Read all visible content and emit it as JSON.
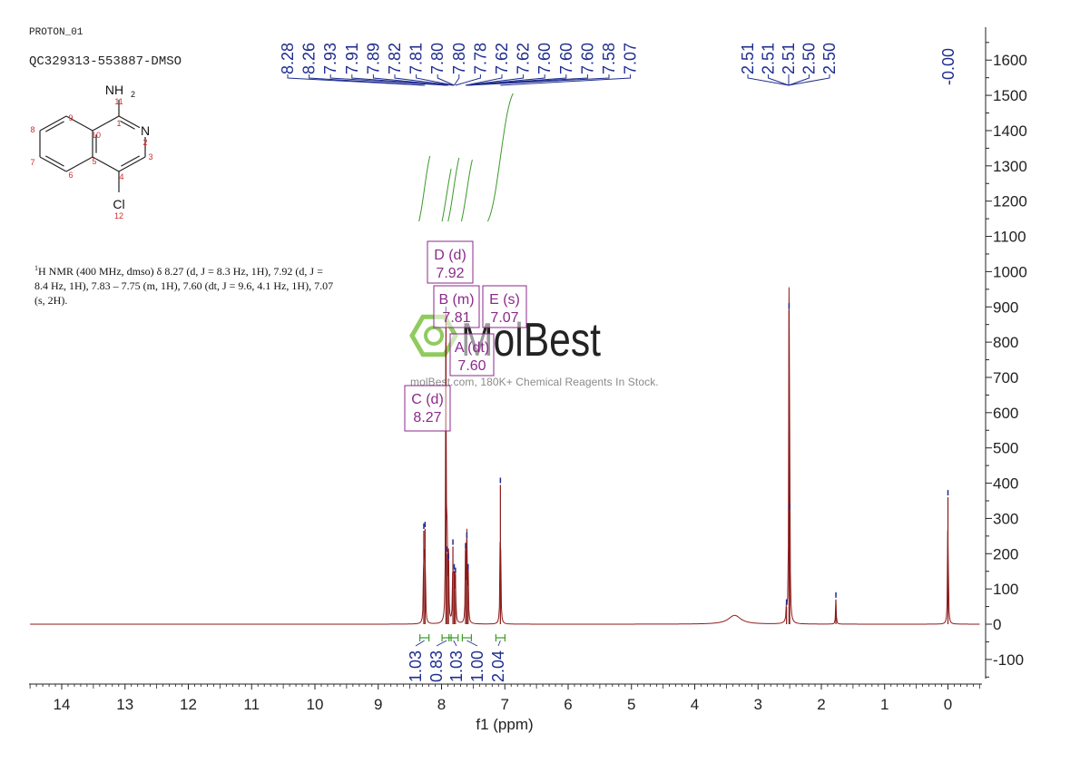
{
  "header": {
    "experiment": "PROTON_01",
    "sample": "QC329313-553887-DMSO"
  },
  "description": {
    "nucleus_sup": "1",
    "text": "H NMR (400 MHz, dmso) δ 8.27 (d, J = 8.3 Hz, 1H), 7.92 (d, J = 8.4 Hz, 1H), 7.83 – 7.75 (m, 1H), 7.60 (dt, J = 9.6, 4.1 Hz, 1H), 7.07 (s, 2H)."
  },
  "watermark": {
    "brand": "MolBest",
    "tagline": "molBest.com, 180K+ Chemical Reagents In Stock.",
    "color": "#7cc242"
  },
  "structure": {
    "atoms": {
      "nh2": "NH2",
      "n": "N",
      "cl": "Cl"
    },
    "atom_numbers": [
      "1",
      "2",
      "3",
      "4",
      "5",
      "6",
      "7",
      "8",
      "9",
      "10",
      "11",
      "12"
    ]
  },
  "chart_data": {
    "type": "line",
    "title": "",
    "xlabel": "f1 (ppm)",
    "ylabel": "",
    "xlim": [
      14.5,
      -0.5
    ],
    "ylim": [
      -160,
      1680
    ],
    "x_axis_reversed": true,
    "x_ticks": [
      14,
      13,
      12,
      11,
      10,
      9,
      8,
      7,
      6,
      5,
      4,
      3,
      2,
      1,
      0
    ],
    "y_ticks": [
      -100,
      0,
      100,
      200,
      300,
      400,
      500,
      600,
      700,
      800,
      900,
      1000,
      1100,
      1200,
      1300,
      1400,
      1500,
      1600
    ],
    "y_axis_side": "right",
    "colors": {
      "spectrum": "#8b1a1a",
      "labels": "#1f2d8f",
      "integrals": "#3c9a2a",
      "multiplets": "#8b2a8b"
    },
    "spectrum_peaks": [
      {
        "x": 8.28,
        "y": 265
      },
      {
        "x": 8.26,
        "y": 270
      },
      {
        "x": 7.93,
        "y": 880
      },
      {
        "x": 7.91,
        "y": 200
      },
      {
        "x": 7.89,
        "y": 180
      },
      {
        "x": 7.82,
        "y": 220
      },
      {
        "x": 7.8,
        "y": 150
      },
      {
        "x": 7.78,
        "y": 140
      },
      {
        "x": 7.62,
        "y": 210
      },
      {
        "x": 7.6,
        "y": 240
      },
      {
        "x": 7.58,
        "y": 150
      },
      {
        "x": 7.07,
        "y": 395
      },
      {
        "x": 3.37,
        "y": 25
      },
      {
        "x": 2.55,
        "y": 50
      },
      {
        "x": 2.51,
        "y": 890
      },
      {
        "x": 2.5,
        "y": 320
      },
      {
        "x": 1.77,
        "y": 70
      },
      {
        "x": 0.0,
        "y": 360
      }
    ],
    "peak_labels_group1": [
      "8.28",
      "8.26",
      "7.93",
      "7.91",
      "7.89",
      "7.82",
      "7.81",
      "7.80",
      "7.80",
      "7.78",
      "7.62",
      "7.62",
      "7.60",
      "7.60",
      "7.60",
      "7.58",
      "7.07"
    ],
    "peak_labels_group2": [
      "2.51",
      "2.51",
      "2.51",
      "2.50",
      "2.50"
    ],
    "peak_labels_group3": [
      "-0.00"
    ],
    "integrals": [
      {
        "x_center": 8.27,
        "value": "1.03"
      },
      {
        "x_center": 7.92,
        "value": "0.83"
      },
      {
        "x_center": 7.81,
        "value": "1.03"
      },
      {
        "x_center": 7.6,
        "value": "1.00"
      },
      {
        "x_center": 7.07,
        "value": "2.04"
      }
    ],
    "multiplets": [
      {
        "label": "D (d)",
        "shift": "7.92"
      },
      {
        "label": "B (m)",
        "shift": "7.81"
      },
      {
        "label": "E (s)",
        "shift": "7.07"
      },
      {
        "label": "A (dt)",
        "shift": "7.60"
      },
      {
        "label": "C (d)",
        "shift": "8.27"
      }
    ]
  }
}
